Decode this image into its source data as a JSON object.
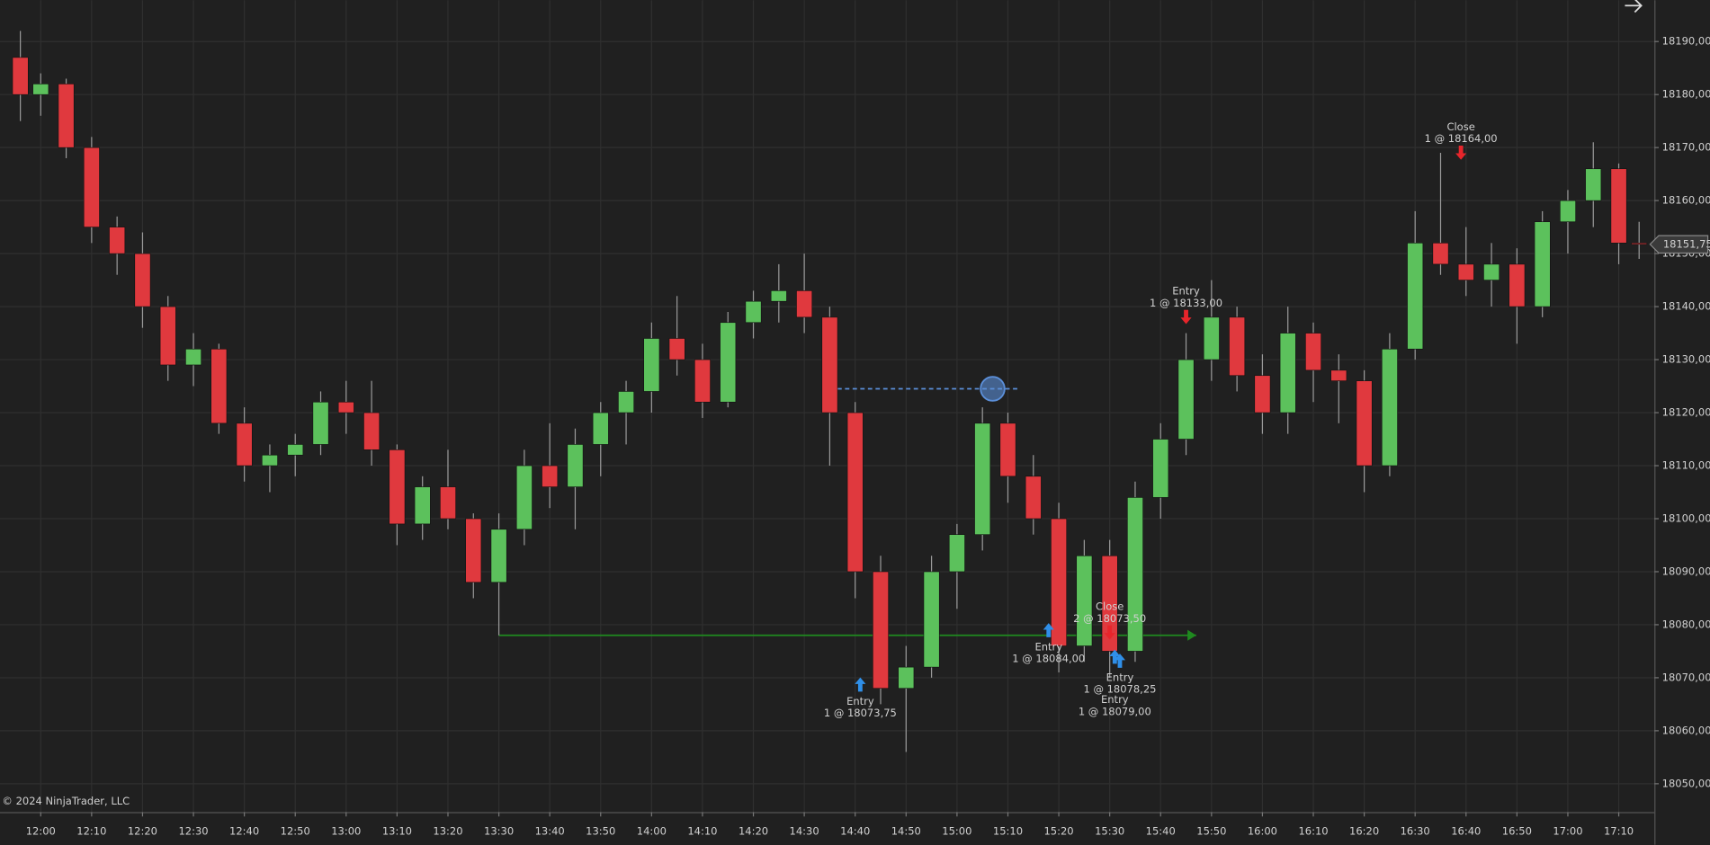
{
  "chart_data": {
    "type": "candlestick",
    "copyright": "© 2024 NinjaTrader, LLC",
    "x": [
      "11:56",
      "12:00",
      "12:05",
      "12:10",
      "12:15",
      "12:20",
      "12:25",
      "12:30",
      "12:35",
      "12:40",
      "12:45",
      "12:50",
      "12:55",
      "13:00",
      "13:05",
      "13:10",
      "13:15",
      "13:20",
      "13:25",
      "13:30",
      "13:35",
      "13:40",
      "13:45",
      "13:50",
      "13:55",
      "14:00",
      "14:05",
      "14:10",
      "14:15",
      "14:20",
      "14:25",
      "14:30",
      "14:35",
      "14:40",
      "14:45",
      "14:50",
      "14:55",
      "15:00",
      "15:05",
      "15:10",
      "15:15",
      "15:20",
      "15:25",
      "15:30",
      "15:35",
      "15:40",
      "15:45",
      "15:50",
      "15:55",
      "16:00",
      "16:05",
      "16:10",
      "16:15",
      "16:20",
      "16:25",
      "16:30",
      "16:35",
      "16:40",
      "16:45",
      "16:50",
      "16:55",
      "17:00",
      "17:05",
      "17:10",
      "17:14"
    ],
    "open": [
      18187,
      18180,
      18182,
      18170,
      18155,
      18150,
      18140,
      18129,
      18132,
      18118,
      18110,
      18112,
      18114,
      18122,
      18120,
      18113,
      18099,
      18106,
      18100,
      18088,
      18098,
      18110,
      18106,
      18114,
      18120,
      18124,
      18134,
      18130,
      18122,
      18137,
      18141,
      18143,
      18138,
      18120,
      18090,
      18068,
      18072,
      18090,
      18097,
      18118,
      18108,
      18100,
      18076,
      18093,
      18075,
      18104,
      18115,
      18130,
      18138,
      18127,
      18120,
      18135,
      18128,
      18126,
      18110,
      18132,
      18152,
      18148,
      18145,
      18148,
      18140,
      18156,
      18160,
      18166,
      18152
    ],
    "high": [
      18192,
      18184,
      18183,
      18172,
      18157,
      18154,
      18142,
      18135,
      18133,
      18121,
      18114,
      18116,
      18124,
      18126,
      18126,
      18114,
      18108,
      18113,
      18101,
      18101,
      18113,
      18118,
      18117,
      18122,
      18126,
      18137,
      18142,
      18133,
      18139,
      18143,
      18148,
      18150,
      18140,
      18122,
      18093,
      18076,
      18093,
      18099,
      18121,
      18120,
      18112,
      18103,
      18096,
      18096,
      18107,
      18118,
      18135,
      18145,
      18140,
      18131,
      18140,
      18137,
      18131,
      18128,
      18135,
      18158,
      18169,
      18155,
      18152,
      18151,
      18158,
      18162,
      18171,
      18167,
      18156
    ],
    "low": [
      18175,
      18176,
      18168,
      18152,
      18146,
      18136,
      18126,
      18125,
      18116,
      18107,
      18105,
      18108,
      18112,
      18116,
      18110,
      18095,
      18096,
      18098,
      18085,
      18078,
      18095,
      18102,
      18098,
      18108,
      18114,
      18120,
      18127,
      18119,
      18121,
      18134,
      18137,
      18135,
      18110,
      18085,
      18065,
      18056,
      18070,
      18083,
      18094,
      18103,
      18097,
      18071,
      18073,
      18070,
      18073,
      18100,
      18112,
      18126,
      18124,
      18116,
      18116,
      18122,
      18118,
      18105,
      18108,
      18130,
      18146,
      18142,
      18140,
      18133,
      18138,
      18150,
      18155,
      18148,
      18149
    ],
    "close": [
      18180,
      18182,
      18170,
      18155,
      18150,
      18140,
      18129,
      18132,
      18118,
      18110,
      18112,
      18114,
      18122,
      18120,
      18113,
      18099,
      18106,
      18100,
      18088,
      18098,
      18110,
      18106,
      18114,
      18120,
      18124,
      18134,
      18130,
      18122,
      18137,
      18141,
      18143,
      18138,
      18120,
      18090,
      18068,
      18072,
      18090,
      18097,
      18118,
      18108,
      18100,
      18076,
      18093,
      18075,
      18104,
      18115,
      18130,
      18138,
      18127,
      18120,
      18135,
      18128,
      18126,
      18110,
      18132,
      18152,
      18148,
      18145,
      18148,
      18140,
      18156,
      18160,
      18166,
      18152,
      18151.75
    ],
    "up_color": "#5cc15c",
    "down_color": "#e0393e",
    "xlim": [
      "11:52",
      "17:17"
    ],
    "xticks": [
      "12:00",
      "12:10",
      "12:20",
      "12:30",
      "12:40",
      "12:50",
      "13:00",
      "13:10",
      "13:20",
      "13:30",
      "13:40",
      "13:50",
      "14:00",
      "14:10",
      "14:20",
      "14:30",
      "14:40",
      "14:50",
      "15:00",
      "15:10",
      "15:20",
      "15:30",
      "15:40",
      "15:50",
      "16:00",
      "16:10",
      "16:20",
      "16:30",
      "16:40",
      "16:50",
      "17:00",
      "17:10"
    ],
    "ylim": [
      18044.65,
      18197.8
    ],
    "yticks": [
      {
        "value": 18050,
        "label": "18050,00"
      },
      {
        "value": 18060,
        "label": "18060,00"
      },
      {
        "value": 18070,
        "label": "18070,00"
      },
      {
        "value": 18080,
        "label": "18080,00"
      },
      {
        "value": 18090,
        "label": "18090,00"
      },
      {
        "value": 18100,
        "label": "18100,00"
      },
      {
        "value": 18110,
        "label": "18110,00"
      },
      {
        "value": 18120,
        "label": "18120,00"
      },
      {
        "value": 18130,
        "label": "18130,00"
      },
      {
        "value": 18140,
        "label": "18140,00"
      },
      {
        "value": 18150,
        "label": "18150,00"
      },
      {
        "value": 18160,
        "label": "18160,00"
      },
      {
        "value": 18170,
        "label": "18170,00"
      },
      {
        "value": 18180,
        "label": "18180,00"
      },
      {
        "value": 18190,
        "label": "18190,00"
      }
    ],
    "grid": true,
    "last_price": {
      "value": 18151.75,
      "label": "18151,75"
    },
    "levels": [
      {
        "price": 18124.5,
        "start": "14:35",
        "end": "15:12",
        "color": "#5b8fd9",
        "style": "dashed",
        "circle": "15:07"
      },
      {
        "price": 18078,
        "start": "13:30",
        "end": "15:47",
        "color": "#1f8a1f",
        "style": "solid",
        "arrow": true
      }
    ],
    "markers": [
      {
        "time": "14:41",
        "price": 18073.75,
        "side": "buy",
        "lines": [
          "Entry",
          "1 @ 18073,75"
        ]
      },
      {
        "time": "15:18",
        "price": 18084,
        "side": "buy",
        "lines": [
          "Entry",
          "1 @ 18084,00"
        ]
      },
      {
        "time": "15:30",
        "price": 18073.5,
        "side": "sell",
        "lines": [
          "Close",
          "2 @ 18073,50"
        ]
      },
      {
        "time": "15:32",
        "price": 18078.25,
        "side": "buy",
        "lines": [
          "Entry",
          "1 @ 18078,25"
        ]
      },
      {
        "time": "15:31",
        "price": 18079,
        "side": "buy",
        "lines": [
          "Entry",
          "1 @ 18079,00"
        ]
      },
      {
        "time": "15:45",
        "price": 18133,
        "side": "sell",
        "lines": [
          "Entry",
          "1 @ 18133,00"
        ]
      },
      {
        "time": "16:39",
        "price": 18164,
        "side": "sell",
        "lines": [
          "Close",
          "1 @ 18164,00"
        ]
      }
    ]
  }
}
